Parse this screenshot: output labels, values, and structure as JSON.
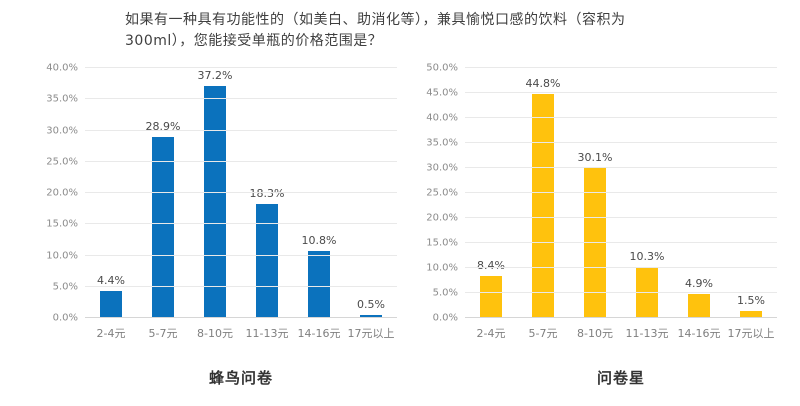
{
  "header": {
    "title_line1": "如果有一种具有功能性的（如美白、助消化等），兼具愉悦口感的饮料（容积为",
    "title_line2": "300ml），您能接受单瓶的价格范围是？"
  },
  "chart_data": [
    {
      "type": "bar",
      "name": "蜂鸟问卷",
      "categories": [
        "2-4元",
        "5-7元",
        "8-10元",
        "11-13元",
        "14-16元",
        "17元以上"
      ],
      "values": [
        4.4,
        28.9,
        37.2,
        18.3,
        10.8,
        0.5
      ],
      "value_labels": [
        "4.4%",
        "28.9%",
        "37.2%",
        "18.3%",
        "10.8%",
        "0.5%"
      ],
      "bar_color": "#0b72bd",
      "ylim": [
        0,
        40
      ],
      "ytick_step": 5,
      "ytick_format": "percent_one_decimal",
      "grid": true,
      "legend": "none"
    },
    {
      "type": "bar",
      "name": "问卷星",
      "categories": [
        "2-4元",
        "5-7元",
        "8-10元",
        "11-13元",
        "14-16元",
        "17元以上"
      ],
      "values": [
        8.4,
        44.8,
        30.1,
        10.3,
        4.9,
        1.5
      ],
      "value_labels": [
        "8.4%",
        "44.8%",
        "30.1%",
        "10.3%",
        "4.9%",
        "1.5%"
      ],
      "bar_color": "#ffc20d",
      "ylim": [
        0,
        50
      ],
      "ytick_step": 5,
      "ytick_format": "percent_one_decimal",
      "grid": true,
      "legend": "none"
    }
  ],
  "colors": {
    "background": "#ffffff",
    "title_text": "#3f3f3f",
    "tick_text": "#8c8c8c",
    "bar_label_text": "#4a4a4a",
    "gridline": "#e9e9e9",
    "blue_series": "#0b72bd",
    "gold_series": "#ffc20d"
  }
}
